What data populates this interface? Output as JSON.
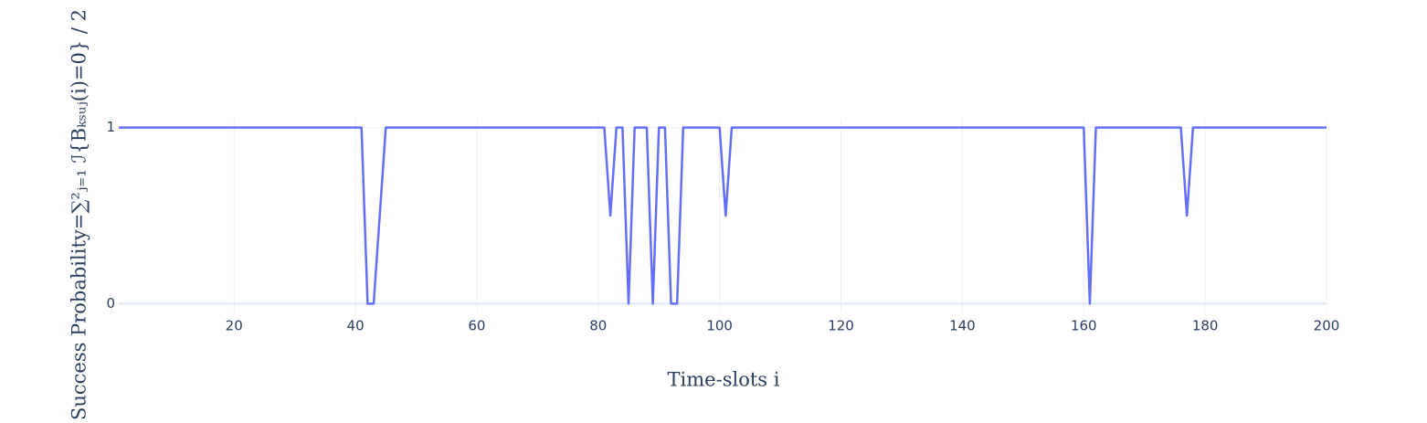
{
  "chart_data": {
    "type": "line",
    "x_label": "Time-slots i",
    "y_label": "Success Probability=∑²ⱼ₌₁ ℐ{Bₖₛᵤⱼ(i)=0} / 2",
    "x": [
      1,
      2,
      3,
      4,
      5,
      6,
      7,
      8,
      9,
      10,
      11,
      12,
      13,
      14,
      15,
      16,
      17,
      18,
      19,
      20,
      21,
      22,
      23,
      24,
      25,
      26,
      27,
      28,
      29,
      30,
      31,
      32,
      33,
      34,
      35,
      36,
      37,
      38,
      39,
      40,
      41,
      42,
      43,
      44,
      45,
      46,
      47,
      48,
      49,
      50,
      51,
      52,
      53,
      54,
      55,
      56,
      57,
      58,
      59,
      60,
      61,
      62,
      63,
      64,
      65,
      66,
      67,
      68,
      69,
      70,
      71,
      72,
      73,
      74,
      75,
      76,
      77,
      78,
      79,
      80,
      81,
      82,
      83,
      84,
      85,
      86,
      87,
      88,
      89,
      90,
      91,
      92,
      93,
      94,
      95,
      96,
      97,
      98,
      99,
      100,
      101,
      102,
      103,
      104,
      105,
      106,
      107,
      108,
      109,
      110,
      111,
      112,
      113,
      114,
      115,
      116,
      117,
      118,
      119,
      120,
      121,
      122,
      123,
      124,
      125,
      126,
      127,
      128,
      129,
      130,
      131,
      132,
      133,
      134,
      135,
      136,
      137,
      138,
      139,
      140,
      141,
      142,
      143,
      144,
      145,
      146,
      147,
      148,
      149,
      150,
      151,
      152,
      153,
      154,
      155,
      156,
      157,
      158,
      159,
      160,
      161,
      162,
      163,
      164,
      165,
      166,
      167,
      168,
      169,
      170,
      171,
      172,
      173,
      174,
      175,
      176,
      177,
      178,
      179,
      180,
      181,
      182,
      183,
      184,
      185,
      186,
      187,
      188,
      189,
      190,
      191,
      192,
      193,
      194,
      195,
      196,
      197,
      198,
      199,
      200
    ],
    "series": [
      {
        "color": "#636efa",
        "values": [
          1,
          1,
          1,
          1,
          1,
          1,
          1,
          1,
          1,
          1,
          1,
          1,
          1,
          1,
          1,
          1,
          1,
          1,
          1,
          1,
          1,
          1,
          1,
          1,
          1,
          1,
          1,
          1,
          1,
          1,
          1,
          1,
          1,
          1,
          1,
          1,
          1,
          1,
          1,
          1,
          1,
          0,
          0,
          0.5,
          1,
          1,
          1,
          1,
          1,
          1,
          1,
          1,
          1,
          1,
          1,
          1,
          1,
          1,
          1,
          1,
          1,
          1,
          1,
          1,
          1,
          1,
          1,
          1,
          1,
          1,
          1,
          1,
          1,
          1,
          1,
          1,
          1,
          1,
          1,
          1,
          1,
          0.5,
          1,
          1,
          0,
          1,
          1,
          1,
          0,
          1,
          1,
          0,
          0,
          1,
          1,
          1,
          1,
          1,
          1,
          1,
          0.5,
          1,
          1,
          1,
          1,
          1,
          1,
          1,
          1,
          1,
          1,
          1,
          1,
          1,
          1,
          1,
          1,
          1,
          1,
          1,
          1,
          1,
          1,
          1,
          1,
          1,
          1,
          1,
          1,
          1,
          1,
          1,
          1,
          1,
          1,
          1,
          1,
          1,
          1,
          1,
          1,
          1,
          1,
          1,
          1,
          1,
          1,
          1,
          1,
          1,
          1,
          1,
          1,
          1,
          1,
          1,
          1,
          1,
          1,
          1,
          0,
          1,
          1,
          1,
          1,
          1,
          1,
          1,
          1,
          1,
          1,
          1,
          1,
          1,
          1,
          1,
          0.5,
          1,
          1,
          1,
          1,
          1,
          1,
          1,
          1,
          1,
          1,
          1,
          1,
          1,
          1,
          1,
          1,
          1,
          1,
          1,
          1,
          1,
          1,
          1
        ]
      }
    ],
    "xlim": [
      1,
      200
    ],
    "xticks": [
      20,
      40,
      60,
      80,
      100,
      120,
      140,
      160,
      180,
      200
    ],
    "ylim": [
      -0.05,
      1.05
    ],
    "yticks": [
      0,
      1
    ],
    "grid": true
  }
}
